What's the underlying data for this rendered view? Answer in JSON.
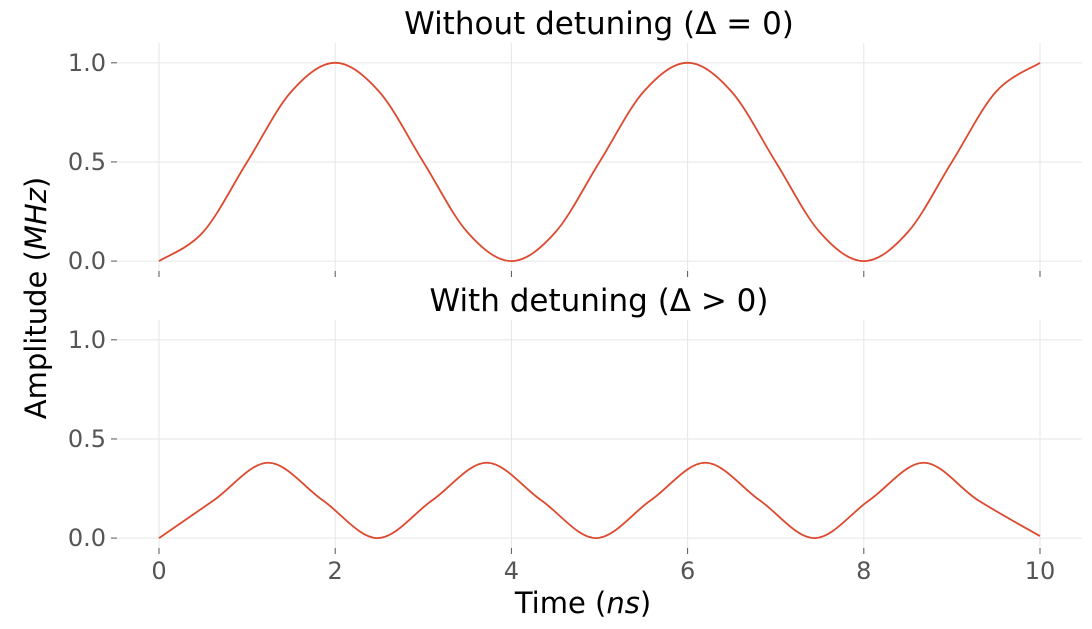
{
  "chart_data": [
    {
      "type": "line",
      "title": "Without detuning (Δ = 0)",
      "xlim": [
        0,
        10
      ],
      "ylim": [
        -0.05,
        1.1
      ],
      "xticks": [
        0,
        2,
        4,
        6,
        8,
        10
      ],
      "yticks": [
        0.0,
        0.5,
        1.0
      ],
      "ytick_labels": [
        "0.0",
        "0.5",
        "1.0"
      ],
      "xtick_labels": [],
      "grid": true,
      "series": [
        {
          "color": "#dc4a2f",
          "x": [
            0,
            0.5,
            1,
            1.5,
            2,
            2.5,
            3,
            3.5,
            4,
            4.5,
            5,
            5.5,
            6,
            6.5,
            7,
            7.5,
            8,
            8.5,
            9,
            9.5,
            10
          ],
          "y": [
            0,
            0.146,
            0.5,
            0.854,
            1.0,
            0.854,
            0.5,
            0.146,
            0,
            0.146,
            0.5,
            0.854,
            1.0,
            0.854,
            0.5,
            0.146,
            0,
            0.146,
            0.5,
            0.854,
            1.0
          ]
        }
      ]
    },
    {
      "type": "line",
      "title": "With detuning (Δ > 0)",
      "xlim": [
        0,
        10
      ],
      "ylim": [
        -0.05,
        1.1
      ],
      "xticks": [
        0,
        2,
        4,
        6,
        8,
        10
      ],
      "yticks": [
        0.0,
        0.5,
        1.0
      ],
      "ytick_labels": [
        "0.0",
        "0.5",
        "1.0"
      ],
      "xtick_labels": [
        "0",
        "2",
        "4",
        "6",
        "8",
        "10"
      ],
      "grid": true,
      "series": [
        {
          "color": "#dc4a2f",
          "x": [
            0,
            0.62,
            1.24,
            1.86,
            2.48,
            3.1,
            3.72,
            4.34,
            4.96,
            5.58,
            6.2,
            6.82,
            7.44,
            8.06,
            8.68,
            9.3,
            10
          ],
          "y": [
            0,
            0.19,
            0.38,
            0.19,
            0,
            0.19,
            0.38,
            0.19,
            0,
            0.19,
            0.38,
            0.19,
            0,
            0.19,
            0.38,
            0.19,
            0.01
          ]
        }
      ]
    }
  ],
  "labels": {
    "xlabel_main": "Time (",
    "xlabel_unit": "ns",
    "xlabel_close": ")",
    "ylabel_main": "Amplitude (",
    "ylabel_unit": "MHz",
    "ylabel_close": ")"
  }
}
